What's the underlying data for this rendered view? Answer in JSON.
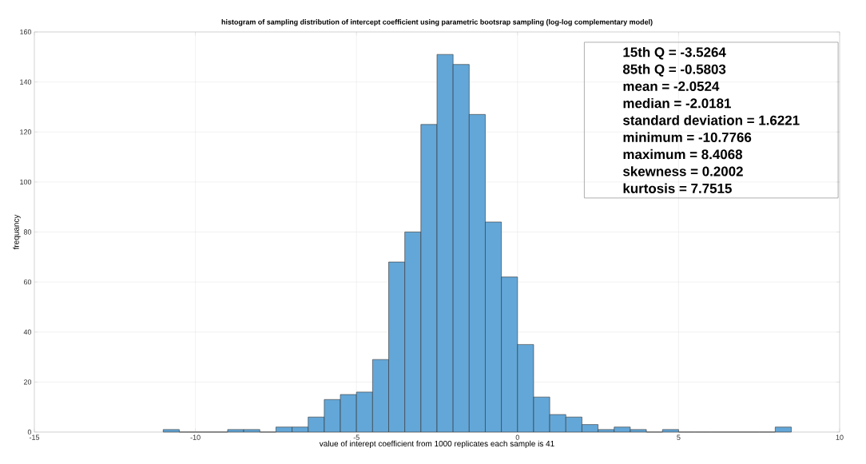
{
  "chart_data": {
    "type": "histogram",
    "title": "histogram of sampling distribution of intercept coefficient using parametric bootsrap sampling (log-log complementary model)",
    "xlabel": "value of interept coefficient from 1000 replicates each sample is 41",
    "ylabel": "frequancy",
    "bins": [
      -11,
      -10.5,
      -10,
      -9.5,
      -9,
      -8.5,
      -8,
      -7.5,
      -7,
      -6.5,
      -6,
      -5.5,
      -5,
      -4.5,
      -4,
      -3.5,
      -3,
      -2.5,
      -2,
      -1.5,
      -1,
      -0.5,
      0,
      0.5,
      1,
      1.5,
      2,
      2.5,
      3,
      3.5,
      4,
      4.5,
      5,
      5.5,
      6,
      6.5,
      7,
      7.5,
      8,
      8.5
    ],
    "values": [
      1,
      0,
      0,
      0,
      1,
      1,
      0,
      2,
      2,
      6,
      13,
      15,
      16,
      29,
      68,
      80,
      123,
      151,
      147,
      127,
      84,
      62,
      35,
      14,
      7,
      6,
      3,
      1,
      2,
      1,
      0,
      1,
      0,
      0,
      0,
      0,
      0,
      0,
      2
    ],
    "color": "#63a7d8",
    "xlim": [
      -15,
      10
    ],
    "xticks": [
      -15,
      -10,
      -5,
      0,
      5,
      10
    ],
    "ylim": [
      0,
      160
    ],
    "yticks": [
      0,
      20,
      40,
      60,
      80,
      100,
      120,
      140,
      160
    ],
    "grid": true,
    "annotations": [
      "15th Q = -3.5264",
      "85th Q = -0.5803",
      "mean = -2.0524",
      "median = -2.0181",
      "standard deviation = 1.6221",
      "minimum = -10.7766",
      "maximum = 8.4068",
      "skewness = 0.2002",
      "kurtosis = 7.7515"
    ]
  }
}
